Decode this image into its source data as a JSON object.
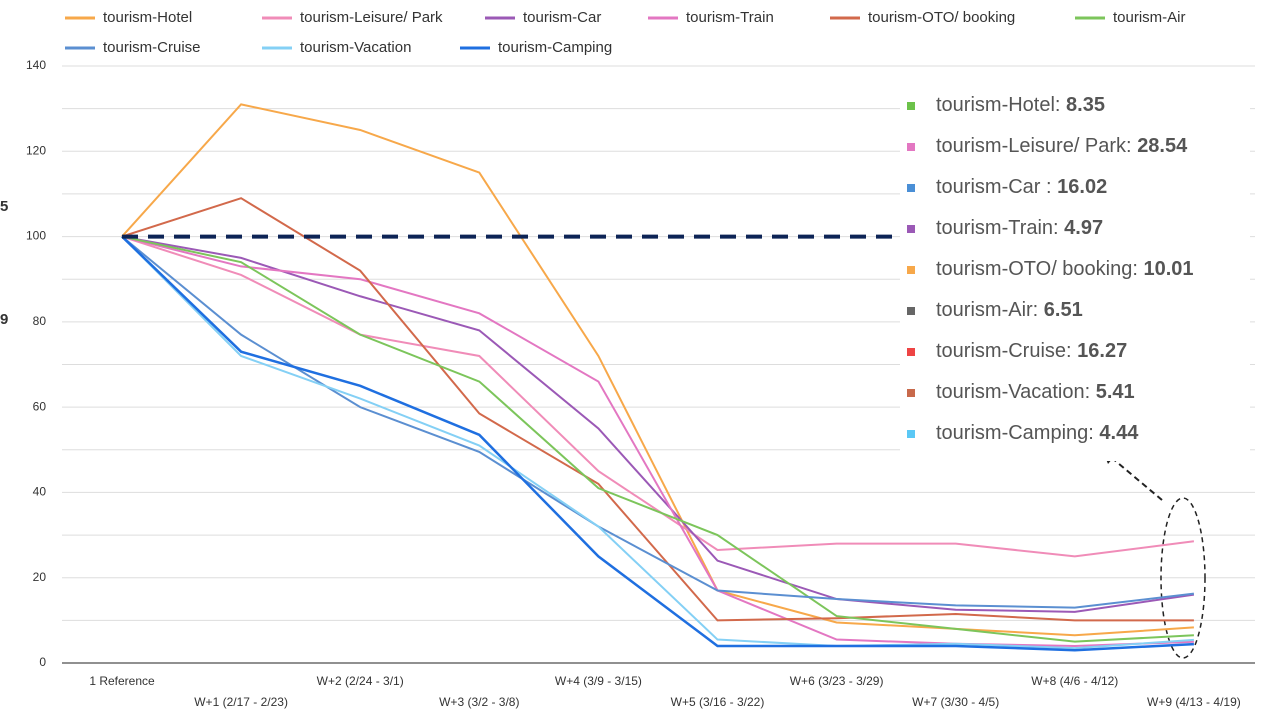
{
  "chart_data": {
    "type": "line",
    "categories": [
      "1 Reference",
      "W+1 (2/17 - 2/23)",
      "W+2 (2/24 - 3/1)",
      "W+3 (3/2 - 3/8)",
      "W+4 (3/9 - 3/15)",
      "W+5 (3/16 - 3/22)",
      "W+6 (3/23 - 3/29)",
      "W+7 (3/30 - 4/5)",
      "W+8 (4/6 - 4/12)",
      "W+9 (4/13 - 4/19)"
    ],
    "series": [
      {
        "name": "tourism-Hotel",
        "color": "#f7a84a",
        "values": [
          100,
          131,
          125,
          115,
          72,
          17,
          9.5,
          8,
          6.5,
          8.35
        ]
      },
      {
        "name": "tourism-Leisure/ Park",
        "color": "#f08cb8",
        "values": [
          100,
          91,
          77,
          72,
          45,
          26.5,
          28,
          28,
          25,
          28.54
        ]
      },
      {
        "name": "tourism-Car",
        "color": "#9b59b6",
        "values": [
          100,
          95,
          86,
          78,
          55,
          24,
          15,
          12.5,
          12,
          16.02
        ]
      },
      {
        "name": "tourism-Train",
        "color": "#e377c2",
        "values": [
          100,
          93,
          90,
          82,
          66,
          17,
          5.5,
          4.5,
          4,
          4.97
        ]
      },
      {
        "name": "tourism-OTO/ booking",
        "color": "#d2694b",
        "values": [
          100,
          109,
          92,
          58.5,
          42,
          10,
          10.5,
          11.5,
          10,
          10.01
        ]
      },
      {
        "name": "tourism-Air",
        "color": "#7cc55b",
        "values": [
          100,
          94,
          77,
          66,
          41,
          30,
          11,
          8,
          5,
          6.51
        ]
      },
      {
        "name": "tourism-Cruise",
        "color": "#5b8fd1",
        "values": [
          100,
          77,
          60,
          49.5,
          32,
          17,
          15,
          13.5,
          13,
          16.27
        ]
      },
      {
        "name": "tourism-Vacation",
        "color": "#84d0f5",
        "values": [
          100,
          72,
          62,
          51,
          32,
          5.5,
          4,
          4.5,
          3.5,
          5.41
        ]
      },
      {
        "name": "tourism-Camping",
        "color": "#1f6fe0",
        "values": [
          100,
          73,
          65,
          53.5,
          25,
          4,
          4,
          4,
          3,
          4.44
        ]
      }
    ],
    "ylim": [
      0,
      140
    ],
    "yticks": [
      0,
      20,
      40,
      60,
      80,
      100,
      120,
      140
    ],
    "minor_gridlines": [
      10,
      30,
      50,
      70,
      90,
      110,
      130
    ],
    "grid": true,
    "reference_line": {
      "value": 100,
      "color": "#0d2456"
    },
    "edge_labels": [
      "5",
      "9"
    ],
    "annotations": [
      {
        "label": "tourism-Hotel:",
        "value": 8.35,
        "color": "#6cc24a"
      },
      {
        "label": "tourism-Leisure/ Park:",
        "value": 28.54,
        "color": "#e377c2"
      },
      {
        "label": "tourism-Car :",
        "value": 16.02,
        "color": "#4a8fd6"
      },
      {
        "label": "tourism-Train:",
        "value": 4.97,
        "color": "#9b59b6"
      },
      {
        "label": "tourism-OTO/ booking:",
        "value": 10.01,
        "color": "#f7a84a"
      },
      {
        "label": "tourism-Air:",
        "value": 6.51,
        "color": "#666666"
      },
      {
        "label": "tourism-Cruise:",
        "value": 16.27,
        "color": "#ee4444"
      },
      {
        "label": "tourism-Vacation:",
        "value": 5.41,
        "color": "#c8694b"
      },
      {
        "label": "tourism-Camping:",
        "value": 4.44,
        "color": "#5bc8f5"
      }
    ]
  }
}
